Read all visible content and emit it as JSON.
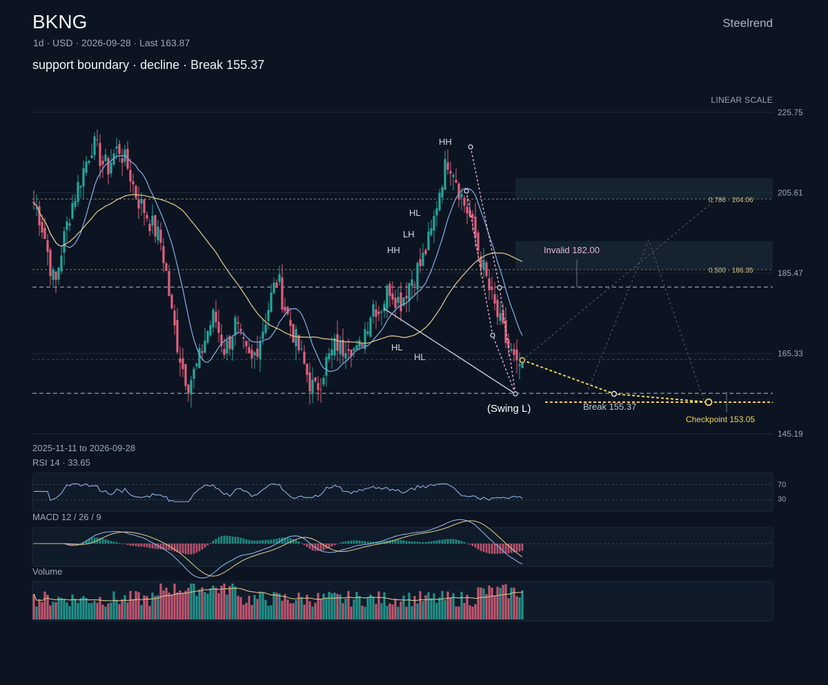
{
  "header": {
    "ticker": "BKNG",
    "meta": "1d · USD · 2026-09-28 · Last 163.87",
    "subtitle": "support boundary · decline · Break 155.37",
    "brand": "Steelrend",
    "scale_label": "LINEAR SCALE"
  },
  "footer": {
    "range": "2025-11-11 to 2026-09-28",
    "rsi_label": "RSI 14 · 33.65",
    "macd_label": "MACD 12 / 26 / 9",
    "volume_label": "Volume"
  },
  "colors": {
    "background": "#0c1421",
    "up": "#26a69a",
    "down": "#e0607e",
    "ma_fast": "#7ea6e0",
    "ma_slow": "#d9c68a",
    "accent_yellow": "#f2d35b",
    "pattern": "#e8b4d8"
  },
  "chart_data": {
    "type": "candlestick",
    "symbol": "BKNG",
    "interval": "1d",
    "currency": "USD",
    "date_range": [
      "2025-11-11",
      "2026-09-28"
    ],
    "last": 163.87,
    "ylim": [
      145.19,
      225.75
    ],
    "y_ticks": [
      225.75,
      205.61,
      185.47,
      165.33,
      145.19
    ],
    "scale": "linear",
    "ohlc_path_closes": [
      203,
      200,
      195,
      188,
      182,
      190,
      196,
      202,
      206,
      210,
      214,
      218,
      216,
      213,
      212,
      215,
      217,
      214,
      211,
      206,
      203,
      201,
      198,
      196,
      193,
      185,
      175,
      168,
      162,
      158,
      160,
      163,
      168,
      172,
      175,
      170,
      166,
      169,
      173,
      168,
      165,
      163,
      167,
      171,
      176,
      181,
      184,
      178,
      174,
      170,
      166,
      162,
      158,
      156,
      159,
      163,
      165,
      168,
      166,
      169,
      167,
      165,
      170,
      174,
      178,
      176,
      179,
      182,
      180,
      178,
      181,
      184,
      186,
      188,
      192,
      196,
      204,
      210,
      214,
      212,
      207,
      203,
      200,
      195,
      190,
      185,
      180,
      176,
      172,
      168,
      165,
      161,
      163.87
    ],
    "swing_labels": [
      "HH",
      "HL",
      "LH",
      "HH",
      "HL",
      "HL",
      "(Swing L)"
    ],
    "levels": [
      {
        "label": "Invalid 182.00",
        "value": 182.0
      },
      {
        "label": "0.786 · 204.06",
        "value": 204.06
      },
      {
        "label": "0.500 · 186.35",
        "value": 186.35
      },
      {
        "label": "Break 155.37",
        "value": 155.37
      },
      {
        "label": "Checkpoint 153.05",
        "value": 153.05
      }
    ],
    "rsi": {
      "period": 14,
      "value": 33.65,
      "bands": [
        70,
        30
      ]
    },
    "macd": {
      "fast": 12,
      "slow": 26,
      "signal": 9
    }
  },
  "annotations": {
    "invalid": "Invalid 182.00",
    "fib786": "0.786 · 204.06",
    "fib500": "0.500 · 186.35",
    "break": "Break 155.37",
    "checkpoint": "Checkpoint 153.05",
    "swing_low": "(Swing L)",
    "rsi_70": "70",
    "rsi_30": "30",
    "pivots": [
      {
        "text": "HH"
      },
      {
        "text": "HL"
      },
      {
        "text": "LH"
      },
      {
        "text": "HH"
      },
      {
        "text": "HL"
      },
      {
        "text": "HL"
      }
    ]
  }
}
